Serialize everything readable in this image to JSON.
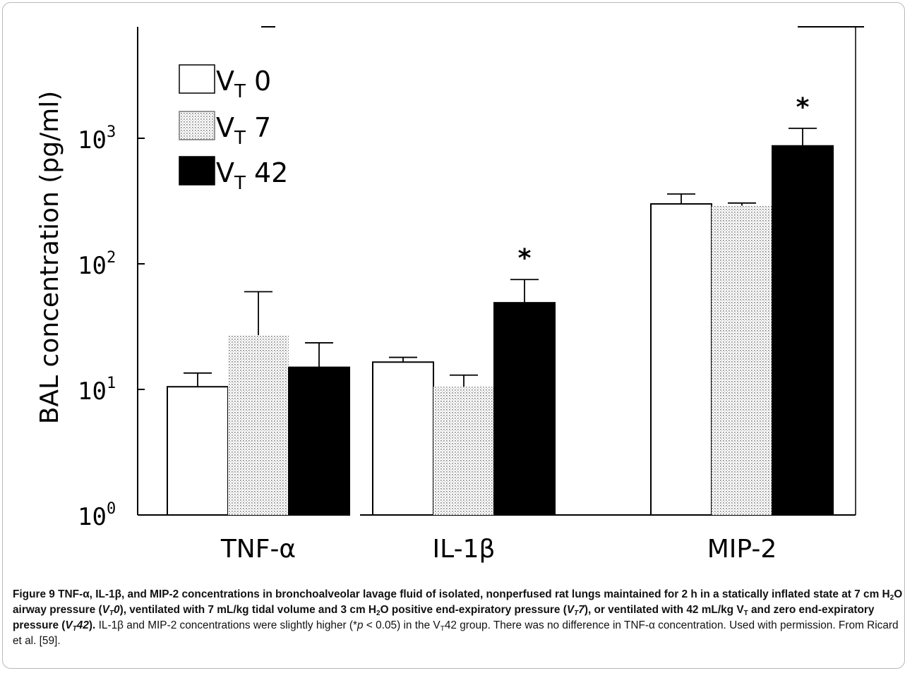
{
  "chart_data": {
    "type": "bar",
    "yscale": "log",
    "ylim": [
      1,
      3162
    ],
    "ylabel": "BAL concentration (pg/ml)",
    "xlabel": "",
    "yticks": [
      {
        "value": 1,
        "base": "10",
        "exp": "0"
      },
      {
        "value": 10,
        "base": "10",
        "exp": "1"
      },
      {
        "value": 100,
        "base": "10",
        "exp": "2"
      },
      {
        "value": 1000,
        "base": "10",
        "exp": "3"
      }
    ],
    "categories": [
      "TNF-α",
      "IL-1β",
      "MIP-2"
    ],
    "legend": {
      "position": "top-left"
    },
    "series": [
      {
        "label": "V",
        "sub": "T",
        "suffix": " 0",
        "style": "open",
        "values": [
          10.5,
          16.5,
          300
        ],
        "errors": [
          13.5,
          18,
          360
        ]
      },
      {
        "label": "V",
        "sub": "T",
        "suffix": " 7",
        "style": "dotted",
        "values": [
          27,
          10.5,
          290
        ],
        "errors": [
          60,
          13,
          305
        ]
      },
      {
        "label": "V",
        "sub": "T",
        "suffix": " 42",
        "style": "filled",
        "values": [
          15,
          49,
          870
        ],
        "errors": [
          23.5,
          75,
          1200
        ]
      }
    ],
    "significance": [
      {
        "category": "IL-1β",
        "series": 2,
        "mark": "*"
      },
      {
        "category": "MIP-2",
        "series": 2,
        "mark": "*"
      }
    ],
    "colors": {
      "filled": "#000000",
      "open": "#ffffff",
      "dotted": "#8a8a8a"
    }
  },
  "caption": {
    "lead": "Figure 9",
    "bold1": " TNF-α, IL-1β, and MIP-2 concentrations in bronchoalveolar lavage fluid of isolated, nonperfused rat lungs maintained for 2 h in a statically inflated state at 7 cm H",
    "sub_2a": "2",
    "bold2": "O airway pressure (",
    "v1": "V",
    "t1": "T",
    "v1n": "0",
    "bold3": "), ventilated with 7 mL/kg tidal volume and 3 cm H",
    "sub_2b": "2",
    "bold4": "O positive end-expiratory pressure (",
    "v2": "V",
    "t2": "T",
    "v2n": "7",
    "bold5": "), or ventilated with 42 mL/kg V",
    "t3": "T",
    "bold6": " and zero end-expiratory pressure (",
    "v4": "V",
    "t4": "T",
    "v4n": "42",
    "bold7": ").",
    "plain1": " IL-1β and MIP-2 concentrations were slightly higher (*",
    "p": "p",
    "plain2": " < 0.05) in the V",
    "t5": "T",
    "plain3": "42 group. There was no difference in TNF-α concentration. Used with permission. From Ricard et al. [59]."
  }
}
